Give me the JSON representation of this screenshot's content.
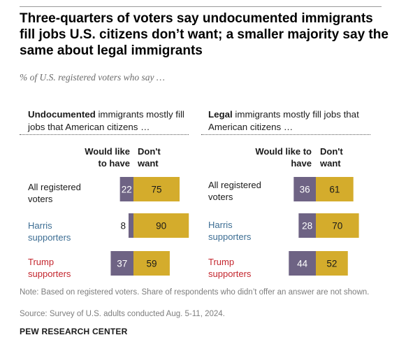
{
  "title": "Three-quarters of voters say undocumented immigrants fill jobs U.S. citizens don’t want; a smaller majority say the same about legal immigrants",
  "subtitle": "% of U.S. registered voters who say …",
  "colors": {
    "would_like": "#6e6384",
    "dont_want": "#d4ac2c",
    "harris": "#3c6d93",
    "trump": "#c4262e"
  },
  "chart_data": [
    {
      "type": "bar",
      "stacked": "diverging",
      "heading_bold": "Undocumented",
      "heading_rest": " immigrants mostly fill jobs that American citizens …",
      "column_labels": [
        "Would like to have",
        "Don't want"
      ],
      "categories": [
        "All registered voters",
        "Harris supporters",
        "Trump supporters"
      ],
      "series": [
        {
          "name": "Would like to have",
          "values": [
            22,
            8,
            37
          ]
        },
        {
          "name": "Don't want",
          "values": [
            75,
            90,
            59
          ]
        }
      ]
    },
    {
      "type": "bar",
      "stacked": "diverging",
      "heading_bold": "Legal",
      "heading_rest": " immigrants mostly fill jobs that American citizens …",
      "column_labels": [
        "Would like to have",
        "Don't want"
      ],
      "categories": [
        "All registered voters",
        "Harris supporters",
        "Trump supporters"
      ],
      "series": [
        {
          "name": "Would like to have",
          "values": [
            36,
            28,
            44
          ]
        },
        {
          "name": "Don't want",
          "values": [
            61,
            70,
            52
          ]
        }
      ]
    }
  ],
  "note": "Note: Based on registered voters. Share of respondents who didn’t offer an answer are not shown.",
  "source": "Source: Survey of U.S. adults conducted Aug. 5-11, 2024.",
  "brand": "PEW RESEARCH CENTER"
}
